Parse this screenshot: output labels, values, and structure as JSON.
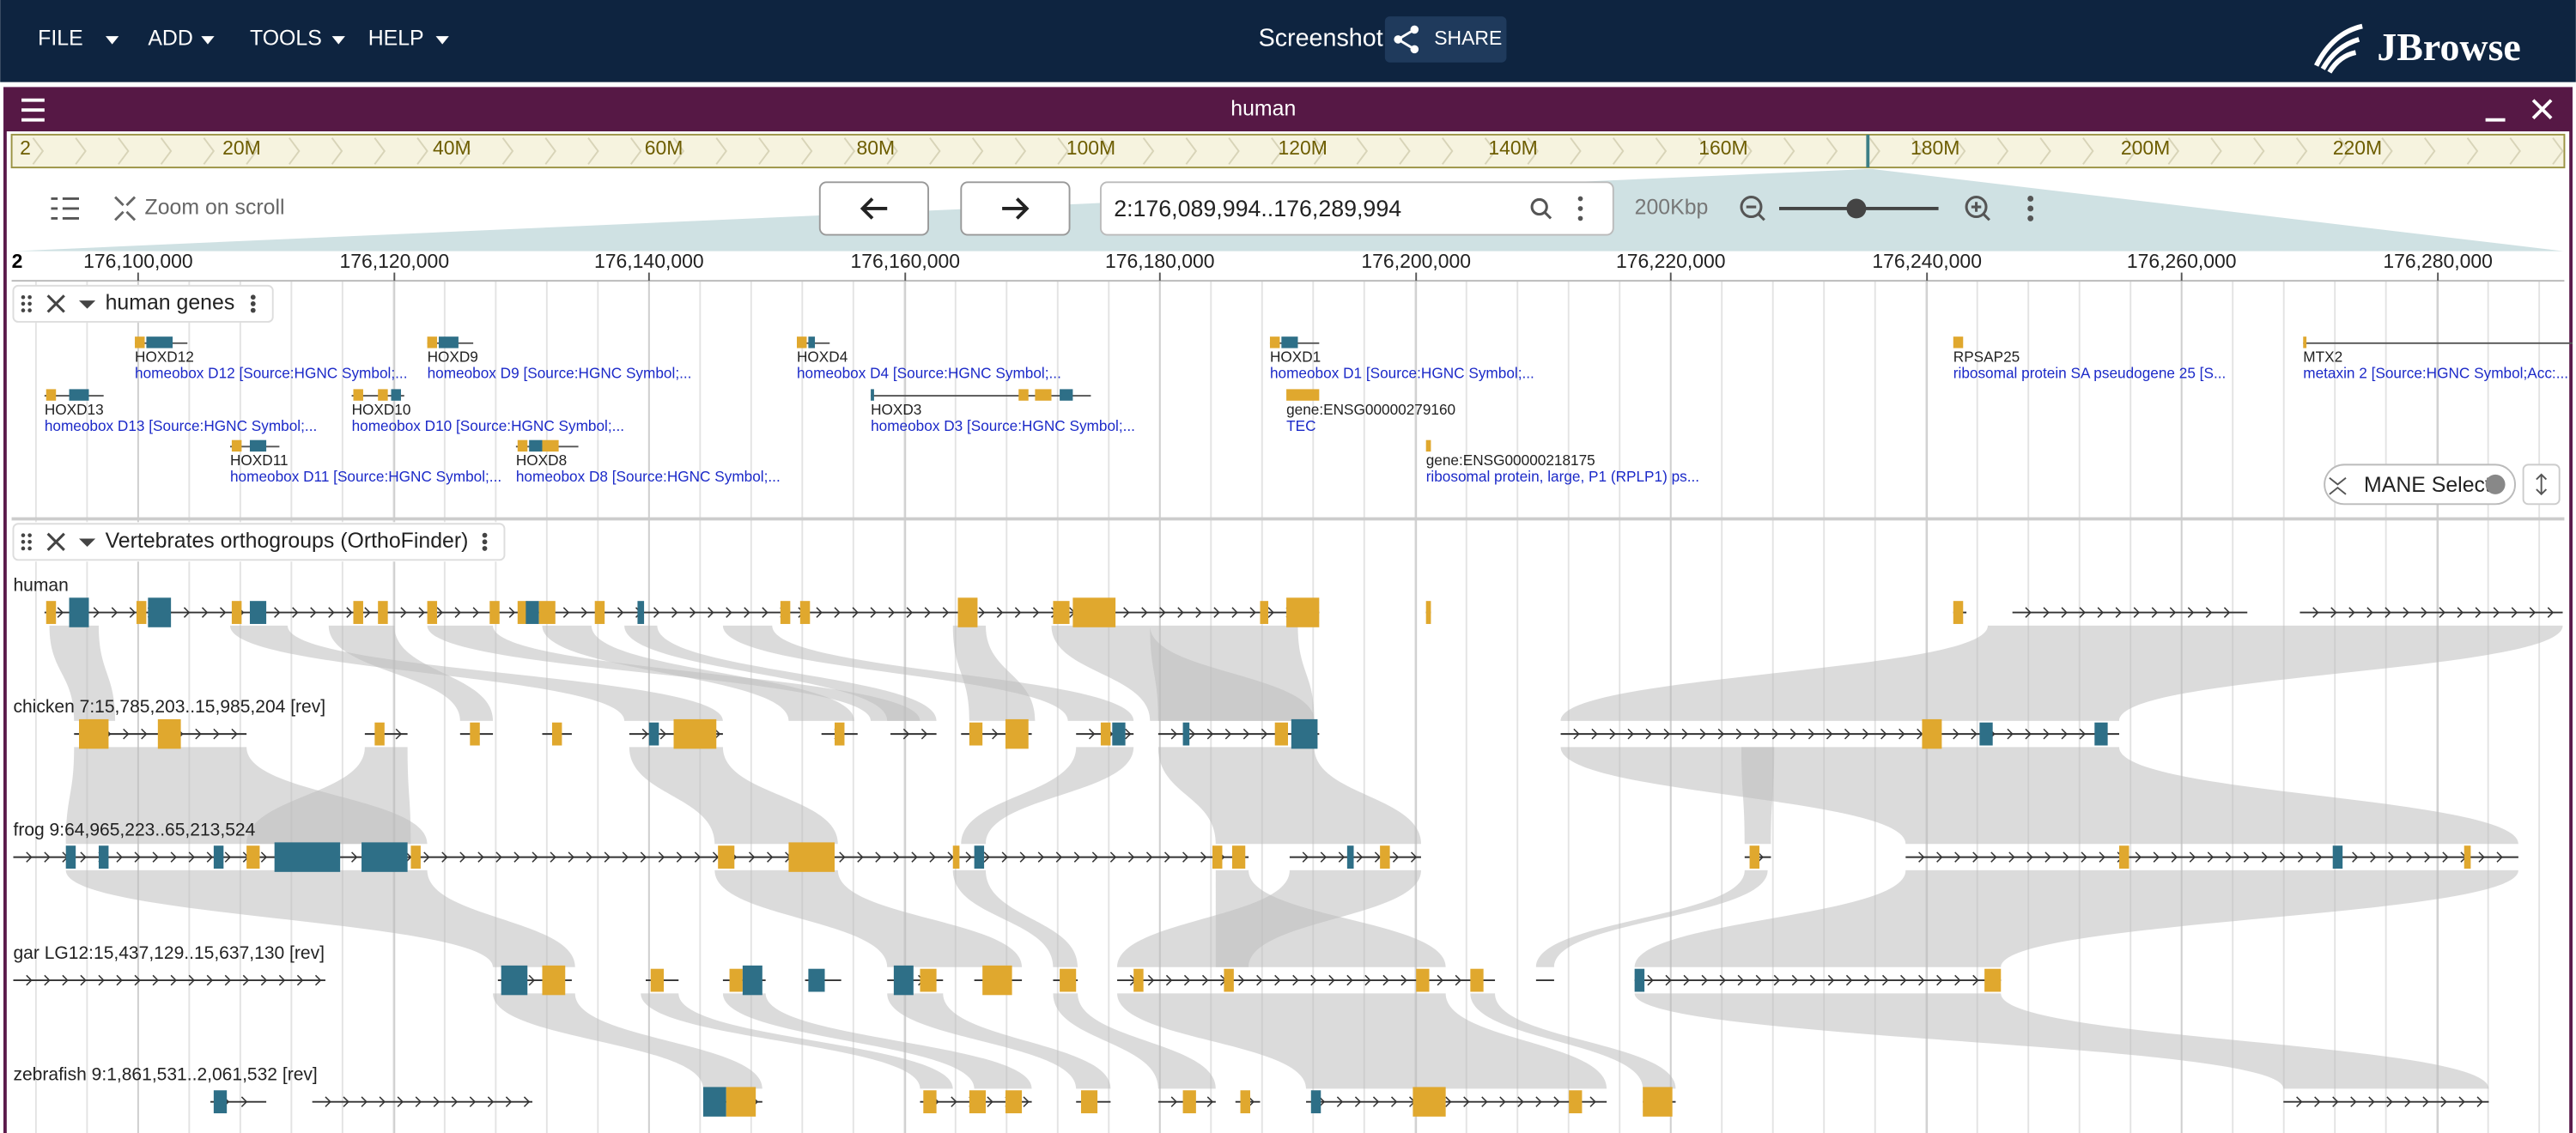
{
  "menu": [
    "FILE",
    "ADD",
    "TOOLS",
    "HELP"
  ],
  "header": {
    "title": "Screenshot",
    "share": "SHARE",
    "logo": "JBrowse"
  },
  "view": {
    "name": "human",
    "overview_ticks": [
      "2",
      "20M",
      "40M",
      "60M",
      "80M",
      "100M",
      "120M",
      "140M",
      "160M",
      "180M",
      "200M",
      "220M"
    ],
    "zoom_on_scroll": "Zoom on scroll",
    "locus": "2:176,089,994..176,289,994",
    "span": "200Kbp",
    "ruler_ref": "2",
    "ruler_ticks": [
      "176,100,000",
      "176,120,000",
      "176,140,000",
      "176,160,000",
      "176,180,000",
      "176,200,000",
      "176,220,000",
      "176,240,000",
      "176,260,000",
      "176,280,000"
    ]
  },
  "tracks": [
    {
      "name": "human genes",
      "chip": "MANE Select",
      "features": [
        {
          "name": "HOXD12",
          "desc": "homeobox D12 [Source:HGNC Symbol;..."
        },
        {
          "name": "HOXD9",
          "desc": "homeobox D9 [Source:HGNC Symbol;..."
        },
        {
          "name": "HOXD4",
          "desc": "homeobox D4 [Source:HGNC Symbol;..."
        },
        {
          "name": "HOXD1",
          "desc": "homeobox D1 [Source:HGNC Symbol;..."
        },
        {
          "name": "RPSAP25",
          "desc": "ribosomal protein SA pseudogene 25 [S..."
        },
        {
          "name": "MTX2",
          "desc": "metaxin 2 [Source:HGNC Symbol;Acc:..."
        },
        {
          "name": "HOXD13",
          "desc": "homeobox D13 [Source:HGNC Symbol;..."
        },
        {
          "name": "HOXD10",
          "desc": "homeobox D10 [Source:HGNC Symbol;..."
        },
        {
          "name": "HOXD3",
          "desc": "homeobox D3 [Source:HGNC Symbol;..."
        },
        {
          "name": "gene:ENSG00000279160",
          "desc": "TEC"
        },
        {
          "name": "HOXD11",
          "desc": "homeobox D11 [Source:HGNC Symbol;..."
        },
        {
          "name": "HOXD8",
          "desc": "homeobox D8 [Source:HGNC Symbol;..."
        },
        {
          "name": "gene:ENSG00000218175",
          "desc": "ribosomal protein, large, P1 (RPLP1) ps..."
        }
      ]
    },
    {
      "name": "Vertebrates orthogroups (OrthoFinder)",
      "rows": [
        "human",
        "chicken 7:15,785,203..15,985,204 [rev]",
        "frog 9:64,965,223..65,213,524",
        "gar LG12:15,437,129..15,637,130 [rev]",
        "zebrafish 9:1,861,531..2,061,532 [rev]"
      ]
    }
  ]
}
